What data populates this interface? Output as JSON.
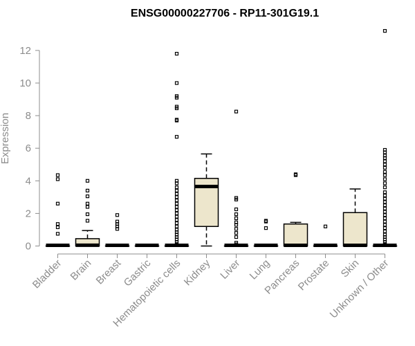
{
  "chart_data": {
    "type": "boxplot",
    "title": "ENSG00000227706 - RP11-301G19.1",
    "ylabel": "Expression",
    "xlabel": "",
    "ylim": [
      0,
      13.2
    ],
    "yticks": [
      0,
      2,
      4,
      6,
      8,
      10,
      12
    ],
    "box_fill": "#ede6cc",
    "categories": [
      "Bladder",
      "Brain",
      "Breast",
      "Gastric",
      "Hematopoietic cells",
      "Kidney",
      "Liver",
      "Lung",
      "Pancreas",
      "Prostate",
      "Skin",
      "Unknown / Other"
    ],
    "boxes": [
      {
        "min": 0,
        "q1": 0,
        "median": 0,
        "q3": 0,
        "max": 0
      },
      {
        "min": 0,
        "q1": 0,
        "median": 0.05,
        "q3": 0.45,
        "max": 0.95
      },
      {
        "min": 0,
        "q1": 0,
        "median": 0,
        "q3": 0,
        "max": 0
      },
      {
        "min": 0,
        "q1": 0,
        "median": 0,
        "q3": 0,
        "max": 0
      },
      {
        "min": 0,
        "q1": 0,
        "median": 0,
        "q3": 0,
        "max": 0
      },
      {
        "min": 0,
        "q1": 1.2,
        "median": 3.65,
        "q3": 4.15,
        "max": 5.65
      },
      {
        "min": 0,
        "q1": 0,
        "median": 0,
        "q3": 0,
        "max": 0
      },
      {
        "min": 0,
        "q1": 0,
        "median": 0,
        "q3": 0,
        "max": 0
      },
      {
        "min": 0,
        "q1": 0,
        "median": 0.02,
        "q3": 1.35,
        "max": 1.45
      },
      {
        "min": 0,
        "q1": 0,
        "median": 0,
        "q3": 0,
        "max": 0
      },
      {
        "min": 0,
        "q1": 0,
        "median": 0.02,
        "q3": 2.05,
        "max": 3.5
      },
      {
        "min": 0,
        "q1": 0,
        "median": 0,
        "q3": 0,
        "max": 0
      }
    ],
    "outliers": [
      [
        4.35,
        4.1,
        2.6,
        1.35,
        1.15,
        0.75
      ],
      [
        4.0,
        3.4,
        3.05,
        2.6,
        2.4,
        1.95,
        1.55
      ],
      [
        1.9,
        1.5,
        1.35,
        1.2,
        1.05
      ],
      [],
      [
        11.8,
        10.0,
        9.2,
        9.1,
        8.55,
        8.45,
        7.75,
        7.7,
        6.7,
        4.0,
        3.85,
        3.6,
        3.4,
        3.2,
        3.0,
        2.8,
        2.6,
        2.4,
        2.2,
        2.0,
        1.8,
        1.6,
        1.4,
        1.2,
        1.0,
        0.85,
        0.7,
        0.55,
        0.4,
        0.25,
        0.12
      ],
      [],
      [
        8.25,
        2.95,
        2.85,
        2.25,
        1.95,
        1.7,
        1.45,
        1.3,
        1.05,
        0.8,
        0.55,
        0.2,
        0.1
      ],
      [
        1.55,
        1.5,
        1.1
      ],
      [
        4.4,
        4.35
      ],
      [
        1.2
      ],
      [],
      [
        13.2,
        5.9,
        5.75,
        5.55,
        5.4,
        5.2,
        5.0,
        4.8,
        4.55,
        4.35,
        4.1,
        3.85,
        3.6,
        3.3,
        3.1,
        2.9,
        2.7,
        2.5,
        2.3,
        2.1,
        1.9,
        1.7,
        1.5,
        1.3,
        1.1,
        0.9,
        0.7,
        0.55,
        0.4,
        0.25,
        0.12
      ]
    ]
  }
}
